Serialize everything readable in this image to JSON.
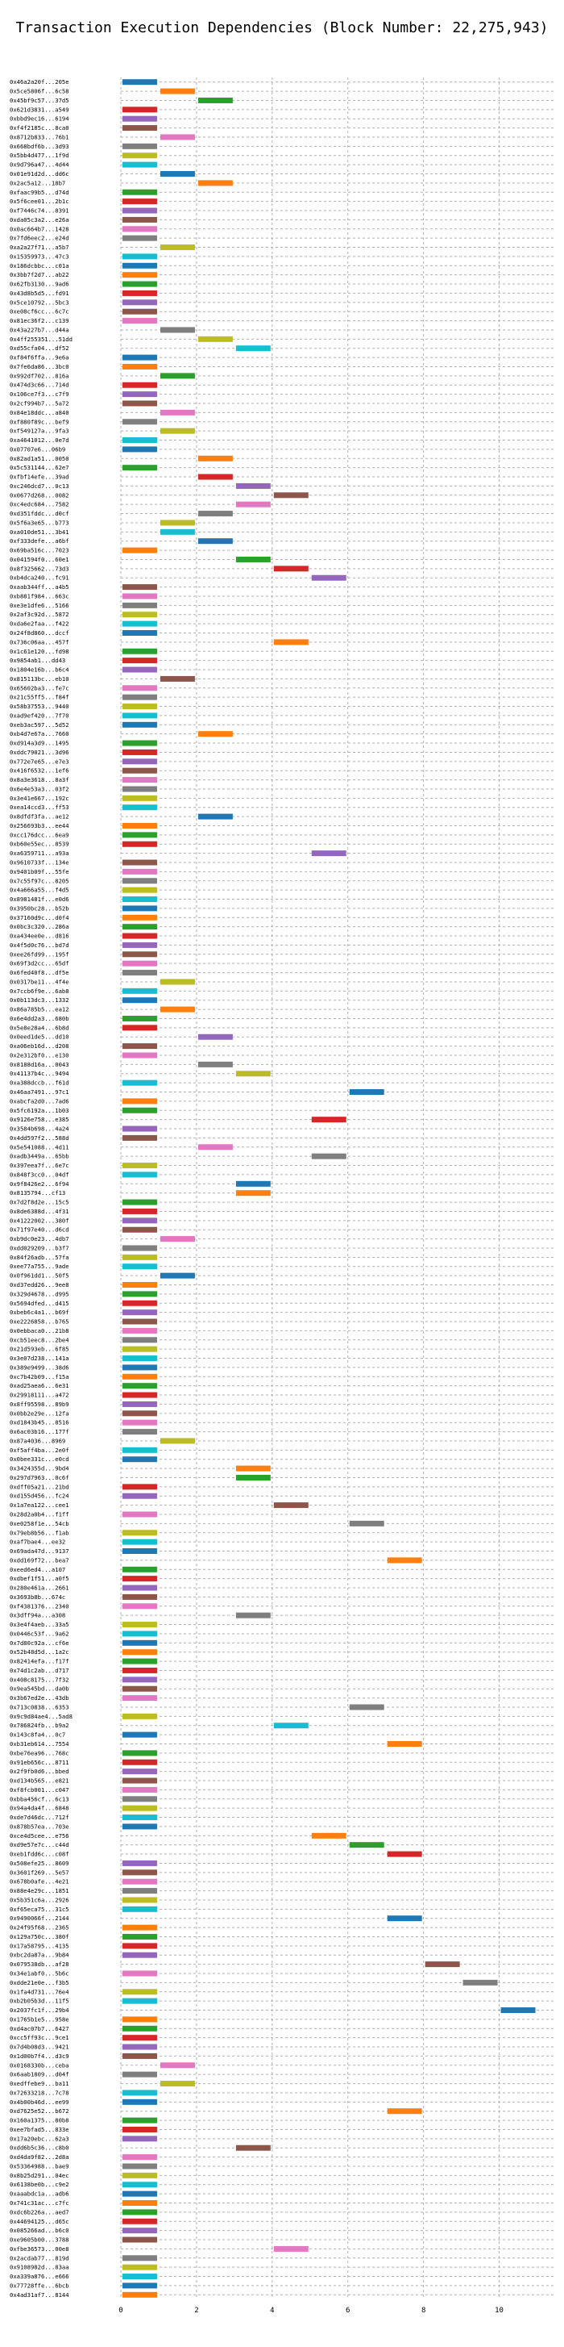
{
  "chart_data": {
    "type": "bar",
    "orientation": "horizontal-gantt",
    "title": "Transaction Execution Dependencies (Block Number: 22,275,943)",
    "xlim": [
      0,
      11.5
    ],
    "xticks": [
      0,
      2,
      4,
      6,
      8,
      10
    ],
    "grid": true,
    "legend": "none",
    "palette": [
      "#1f77b4",
      "#ff7f0e",
      "#2ca02c",
      "#d62728",
      "#9467bd",
      "#8c564b",
      "#e377c2",
      "#7f7f7f",
      "#bcbd22",
      "#17becf"
    ],
    "transactions": [
      [
        "0x46a2a20f...205e",
        0,
        1
      ],
      [
        "0x5ce5806f...6c58",
        1,
        2
      ],
      [
        "0x45bf9c57...37d5",
        2,
        3
      ],
      [
        "0x621d3831...a549",
        0,
        1
      ],
      [
        "0xbbd9ec16...6194",
        0,
        1
      ],
      [
        "0xf4f2185c...8ca0",
        0,
        1
      ],
      [
        "0x8712b833...76b1",
        1,
        2
      ],
      [
        "0x668bdf6b...3d93",
        0,
        1
      ],
      [
        "0x5bb4d477...1f9d",
        0,
        1
      ],
      [
        "0x9d796a47...4d44",
        0,
        1
      ],
      [
        "0x01e91d2d...dd6c",
        1,
        2
      ],
      [
        "0x2ac5a12...18b7",
        2,
        3
      ],
      [
        "0xfaac99b5...d74d",
        0,
        1
      ],
      [
        "0x5f6cee01...2b1c",
        0,
        1
      ],
      [
        "0xf7446c74...8391",
        0,
        1
      ],
      [
        "0xda05c3a2...e26a",
        0,
        1
      ],
      [
        "0x0ac664b7...1428",
        0,
        1
      ],
      [
        "0x7fd6eec2...e24d",
        0,
        1
      ],
      [
        "0xa2a27f71...a5b7",
        1,
        2
      ],
      [
        "0x15359973...47c3",
        0,
        1
      ],
      [
        "0x186dcbbc...c01a",
        0,
        1
      ],
      [
        "0x3bb7f2d7...ab22",
        0,
        1
      ],
      [
        "0x62fb3130...9ad6",
        0,
        1
      ],
      [
        "0x43d8b5d5...fd91",
        0,
        1
      ],
      [
        "0x5ce10792...5bc3",
        0,
        1
      ],
      [
        "0xe08cf6cc...6c7c",
        0,
        1
      ],
      [
        "0x81ec36f2...c139",
        0,
        1
      ],
      [
        "0x43a227b7...d44a",
        1,
        2
      ],
      [
        "0x4ff255351...51dd",
        2,
        3
      ],
      [
        "0xd55cfa04...df52",
        3,
        4
      ],
      [
        "0xf84f6ffa...9e6a",
        0,
        1
      ],
      [
        "0x7fe6da86...3bc0",
        0,
        1
      ],
      [
        "0x992df702...816a",
        1,
        2
      ],
      [
        "0x474d3c66...714d",
        0,
        1
      ],
      [
        "0x106ce7f3...c7f9",
        0,
        1
      ],
      [
        "0x2cf994b7...5a72",
        0,
        1
      ],
      [
        "0x84e18ddc...a840",
        1,
        2
      ],
      [
        "0xf880f89c...bef9",
        0,
        1
      ],
      [
        "0xf549127a...9fa3",
        1,
        2
      ],
      [
        "0xa4641012...0e7d",
        0,
        1
      ],
      [
        "0x07707e6...06b9",
        0,
        1
      ],
      [
        "0x82ad1a51...0050",
        2,
        3
      ],
      [
        "0x5c531144...62e7",
        0,
        1
      ],
      [
        "0xfbf14efe...39ad",
        2,
        3
      ],
      [
        "0xc246dcd7...0c13",
        3,
        4
      ],
      [
        "0x0677d268...0082",
        4,
        5
      ],
      [
        "0xc4edc684...7582",
        3,
        4
      ],
      [
        "0xd351fddc...d0cf",
        2,
        3
      ],
      [
        "0x5f6a3e65...b773",
        1,
        2
      ],
      [
        "0xa010de51...3b41",
        1,
        2
      ],
      [
        "0xf333defe...a6bf",
        2,
        3
      ],
      [
        "0x69ba516c...7023",
        0,
        1
      ],
      [
        "0x041594f0...60e1",
        3,
        4
      ],
      [
        "0x8f325662...73d3",
        4,
        5
      ],
      [
        "0xb4dca240...fc91",
        5,
        6
      ],
      [
        "0xaab344ff...a4b5",
        0,
        1
      ],
      [
        "0xb881f984...663c",
        0,
        1
      ],
      [
        "0xe3e1dfe6...5166",
        0,
        1
      ],
      [
        "0x2af3c92d...5872",
        0,
        1
      ],
      [
        "0xda6e2faa...f422",
        0,
        1
      ],
      [
        "0x24f8d860...dccf",
        0,
        1
      ],
      [
        "0x736c06aa...457f",
        4,
        5
      ],
      [
        "0x1c61e120...fd98",
        0,
        1
      ],
      [
        "0x9854ab1...dd43",
        0,
        1
      ],
      [
        "0x1804e16b...b6c4",
        0,
        1
      ],
      [
        "0x815113bc...eb10",
        1,
        2
      ],
      [
        "0x65602ba3...fe7c",
        0,
        1
      ],
      [
        "0x21c55ff5...f84f",
        0,
        1
      ],
      [
        "0x58b37553...9440",
        0,
        1
      ],
      [
        "0xad9ef420...7f70",
        0,
        1
      ],
      [
        "0xeb3ac597...5d52",
        0,
        1
      ],
      [
        "0xb4d7e67a...7660",
        2,
        3
      ],
      [
        "0xd914a3d9...1495",
        0,
        1
      ],
      [
        "0xddc79021...3d96",
        0,
        1
      ],
      [
        "0x772e7e65...e7e3",
        0,
        1
      ],
      [
        "0x416f6532...1ef6",
        0,
        1
      ],
      [
        "0x8a3e3618...8a3f",
        0,
        1
      ],
      [
        "0x6e4e53a3...03f2",
        0,
        1
      ],
      [
        "0x3e41e667...192c",
        0,
        1
      ],
      [
        "0xea14ccd3...ff53",
        0,
        1
      ],
      [
        "0x8dfdf3fa...ae12",
        2,
        3
      ],
      [
        "0x256693b3...ee44",
        0,
        1
      ],
      [
        "0xcc176dcc...6ea9",
        0,
        1
      ],
      [
        "0xb60e55ec...8539",
        0,
        1
      ],
      [
        "0xa6359711...a93a",
        5,
        6
      ],
      [
        "0x9610733f...134e",
        0,
        1
      ],
      [
        "0x9401b09f...55fe",
        0,
        1
      ],
      [
        "0x7c55f97c...8205",
        0,
        1
      ],
      [
        "0x4a666a55...f4d5",
        0,
        1
      ],
      [
        "0x8981481f...e0d6",
        0,
        1
      ],
      [
        "0x3950bc28...b52b",
        0,
        1
      ],
      [
        "0x37160d9c...d0f4",
        0,
        1
      ],
      [
        "0x0bc3c320...286a",
        0,
        1
      ],
      [
        "0xa434ee0e...d816",
        0,
        1
      ],
      [
        "0x4f5d0c76...bd7d",
        0,
        1
      ],
      [
        "0xee26fd99...195f",
        0,
        1
      ],
      [
        "0x69f3d2cc...65df",
        0,
        1
      ],
      [
        "0x6fed40f8...df5e",
        0,
        1
      ],
      [
        "0x0317be11...4f4e",
        1,
        2
      ],
      [
        "0x7ccb6f9e...6ab8",
        0,
        1
      ],
      [
        "0x0b113dc3...1332",
        0,
        1
      ],
      [
        "0x86a785b5...ea12",
        1,
        2
      ],
      [
        "0x6e4dd2a3...680b",
        0,
        1
      ],
      [
        "0x5e8e28a4...6b8d",
        0,
        1
      ],
      [
        "0x0eed1de5...dd10",
        2,
        3
      ],
      [
        "0xa06eb16d...d208",
        0,
        1
      ],
      [
        "0x2e312bf0...e130",
        0,
        1
      ],
      [
        "0x8188d16a...0043",
        2,
        3
      ],
      [
        "0x41137b4c...9494",
        3,
        4
      ],
      [
        "0xa388dccb...f61d",
        0,
        1
      ],
      [
        "0x46aa7491...97c1",
        6,
        7
      ],
      [
        "0xabcfa2d0...7ad6",
        0,
        1
      ],
      [
        "0x5fc6192a...1b03",
        0,
        1
      ],
      [
        "0x9126e758...e385",
        5,
        6
      ],
      [
        "0x3584b698...4a24",
        0,
        1
      ],
      [
        "0x4dd597f2...588d",
        0,
        1
      ],
      [
        "0x5e541088...4d11",
        2,
        3
      ],
      [
        "0xadb3449a...65bb",
        5,
        6
      ],
      [
        "0x397eea7f...6e7c",
        0,
        1
      ],
      [
        "0x848f3cc0...04df",
        0,
        1
      ],
      [
        "0x9f8426e2...6f94",
        3,
        4
      ],
      [
        "0x8135794...cf13",
        3,
        4
      ],
      [
        "0x7d2f8d2e...15c5",
        0,
        1
      ],
      [
        "0x8de6388d...4f31",
        0,
        1
      ],
      [
        "0x41222002...380f",
        0,
        1
      ],
      [
        "0x71f97e40...d6cd",
        0,
        1
      ],
      [
        "0xb9dc0e23...4db7",
        1,
        2
      ],
      [
        "0xdd029209...b3f7",
        0,
        1
      ],
      [
        "0x84f26adb...57fa",
        0,
        1
      ],
      [
        "0xee77a755...9ade",
        0,
        1
      ],
      [
        "0x0f961dd1...50f5",
        1,
        2
      ],
      [
        "0xd37edd26...9ee8",
        0,
        1
      ],
      [
        "0x329d4678...d995",
        0,
        1
      ],
      [
        "0x5694dfed...d415",
        0,
        1
      ],
      [
        "0xbeb6c4a1...b69f",
        0,
        1
      ],
      [
        "0xe2226858...b765",
        0,
        1
      ],
      [
        "0x0ebbaca0...21b8",
        0,
        1
      ],
      [
        "0xcb51eec8...2be4",
        0,
        1
      ],
      [
        "0x21d593eb...6f85",
        0,
        1
      ],
      [
        "0x3e07d238...141a",
        0,
        1
      ],
      [
        "0x389e9499...38d6",
        0,
        1
      ],
      [
        "0xc7b42b09...f15a",
        0,
        1
      ],
      [
        "0xad25aea6...6e31",
        0,
        1
      ],
      [
        "0x29918111...a472",
        0,
        1
      ],
      [
        "0x8ff95598...89b9",
        0,
        1
      ],
      [
        "0x0bb2e29e...12fa",
        0,
        1
      ],
      [
        "0xd1843b45...8516",
        0,
        1
      ],
      [
        "0x6ac03b16...177f",
        0,
        1
      ],
      [
        "0x87a4036...8969",
        1,
        2
      ],
      [
        "0xf5aff4ba...2e0f",
        0,
        1
      ],
      [
        "0x0bee331c...e0cd",
        0,
        1
      ],
      [
        "0x3424355d...9bd4",
        3,
        4
      ],
      [
        "0x297d7963...0c6f",
        3,
        4
      ],
      [
        "0xdff05a21...21bd",
        0,
        1
      ],
      [
        "0xd155d456...fc24",
        0,
        1
      ],
      [
        "0x1a7ea122...cee1",
        4,
        5
      ],
      [
        "0x28d2a0b4...f1ff",
        0,
        1
      ],
      [
        "0xe0258f1e...54cb",
        6,
        7
      ],
      [
        "0x79eb8b56...f1ab",
        0,
        1
      ],
      [
        "0xaf7bae4...ee32",
        0,
        1
      ],
      [
        "0x69ada47d...9137",
        0,
        1
      ],
      [
        "0xdd169f72...bea7",
        7,
        8
      ],
      [
        "0xeed6ed4...a107",
        0,
        1
      ],
      [
        "0xdbef1f51...a0f5",
        0,
        1
      ],
      [
        "0x280e461a...2661",
        0,
        1
      ],
      [
        "0x3693b8b...674c",
        0,
        1
      ],
      [
        "0xf4381376...2340",
        0,
        1
      ],
      [
        "0x3dff94a...a308",
        3,
        4
      ],
      [
        "0x3e4f4aeb...33a5",
        0,
        1
      ],
      [
        "0x0446c53f...9a62",
        0,
        1
      ],
      [
        "0x7d80c92a...cf6e",
        0,
        1
      ],
      [
        "0x52b48d5d...1a2c",
        0,
        1
      ],
      [
        "0x82414efa...f17f",
        0,
        1
      ],
      [
        "0x74d1c2ab...d717",
        0,
        1
      ],
      [
        "0x408c8175...7f32",
        0,
        1
      ],
      [
        "0x9ea545bd...da0b",
        0,
        1
      ],
      [
        "0x3b67ed2e...43db",
        0,
        1
      ],
      [
        "0x713c0838...6353",
        6,
        7
      ],
      [
        "0x9c9d84ae4...5ad8",
        0,
        1
      ],
      [
        "0x786824fb...b9a2",
        4,
        5
      ],
      [
        "0x143c8fa4...0c7",
        0,
        1
      ],
      [
        "0xb31eb614...7554",
        7,
        8
      ],
      [
        "0xbe76ea96...768c",
        0,
        1
      ],
      [
        "0x91eb656c...8711",
        0,
        1
      ],
      [
        "0x2f9fb0d6...bbed",
        0,
        1
      ],
      [
        "0xd134b565...e821",
        0,
        1
      ],
      [
        "0xf8fcb001...c047",
        0,
        1
      ],
      [
        "0xbba456cf...6c13",
        0,
        1
      ],
      [
        "0x94a4da4f...6848",
        0,
        1
      ],
      [
        "0xde7d46dc...712f",
        0,
        1
      ],
      [
        "0x878b57ea...703e",
        0,
        1
      ],
      [
        "0xce4d5cee...e756",
        5,
        6
      ],
      [
        "0xd9e57e7c...c44d",
        6,
        7
      ],
      [
        "0xeb1fdd6c...c08f",
        7,
        8
      ],
      [
        "0x508efe25...8609",
        0,
        1
      ],
      [
        "0x3601f269...5e57",
        0,
        1
      ],
      [
        "0x678b0afe...4e21",
        0,
        1
      ],
      [
        "0x88e4e29c...1851",
        0,
        1
      ],
      [
        "0x5b351c6a...2926",
        0,
        1
      ],
      [
        "0xf65eca75...31c5",
        0,
        1
      ],
      [
        "0x9490066f...2144",
        7,
        8
      ],
      [
        "0x24f95f68...2365",
        0,
        1
      ],
      [
        "0x129a750c...380f",
        0,
        1
      ],
      [
        "0x17a58795...4135",
        0,
        1
      ],
      [
        "0xbc2da87a...9b84",
        0,
        1
      ],
      [
        "0x079538db...af28",
        8,
        9
      ],
      [
        "0x34e1abf0...5b6c",
        0,
        1
      ],
      [
        "0xdde21e0e...f3b5",
        9,
        10
      ],
      [
        "0x1fa4d731...76e4",
        0,
        1
      ],
      [
        "0xb2b05b3d...11f5",
        0,
        1
      ],
      [
        "0x2037fc1f...29b4",
        10,
        11
      ],
      [
        "0x1765b1e5...958e",
        0,
        1
      ],
      [
        "0xd4ac07b7...6427",
        0,
        1
      ],
      [
        "0xcc5ff93c...9ce1",
        0,
        1
      ],
      [
        "0x7d4b08d3...9421",
        0,
        1
      ],
      [
        "0x1d00b7f4...d3c9",
        0,
        1
      ],
      [
        "0x0168330b...ceba",
        1,
        2
      ],
      [
        "0x6aab1809...d04f",
        0,
        1
      ],
      [
        "0xedffebe9...ba11",
        1,
        2
      ],
      [
        "0x72633218...7c78",
        0,
        1
      ],
      [
        "0x4b00b46d...ee99",
        0,
        1
      ],
      [
        "0xd7625e52...b672",
        7,
        8
      ],
      [
        "0x160a1375...80b8",
        0,
        1
      ],
      [
        "0xee7bfad5...833e",
        0,
        1
      ],
      [
        "0x17a20ebc...62a3",
        0,
        1
      ],
      [
        "0xdd6b5c36...c8b0",
        3,
        4
      ],
      [
        "0xd4da9f82...2d8a",
        0,
        1
      ],
      [
        "0x53364988...bae9",
        0,
        1
      ],
      [
        "0x8b25d291...04ec",
        0,
        1
      ],
      [
        "0x6138be0b...c9e2",
        0,
        1
      ],
      [
        "0xaaabdc1a...adb6",
        0,
        1
      ],
      [
        "0x741c31ac...c7fc",
        0,
        1
      ],
      [
        "0xdc6b226a...aed7",
        0,
        1
      ],
      [
        "0x44694125...d65c",
        0,
        1
      ],
      [
        "0x085266ad...b6c0",
        0,
        1
      ],
      [
        "0xe9605b00...3788",
        0,
        1
      ],
      [
        "0xfbe36573...00e8",
        4,
        5
      ],
      [
        "0x2acdab77...819d",
        0,
        1
      ],
      [
        "0x9108982d...83aa",
        0,
        1
      ],
      [
        "0xa339a876...e666",
        0,
        1
      ],
      [
        "0x77728ffe...6bcb",
        0,
        1
      ],
      [
        "0x4ad31af7...8144",
        0,
        1
      ]
    ]
  }
}
